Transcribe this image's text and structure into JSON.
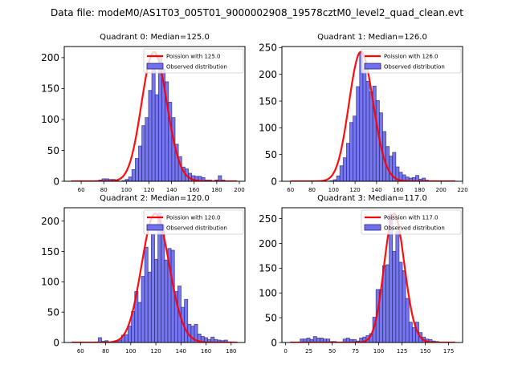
{
  "figure": {
    "suptitle": "Data file: modeM0/AS1T03_005T01_9000002908_19578cztM0_level2_quad_clean.evt"
  },
  "colors": {
    "bar_fill": "#7070f0",
    "bar_edge": "#22226b",
    "poisson_line": "#ff0000"
  },
  "chart_data": [
    {
      "type": "bar",
      "title": "Quadrant 0: Median=125.0",
      "xlabel": "",
      "ylabel": "",
      "xlim": [
        45,
        205
      ],
      "ylim": [
        0,
        218
      ],
      "xticks": [
        60,
        80,
        100,
        120,
        140,
        160,
        180,
        200
      ],
      "yticks": [
        0,
        50,
        100,
        150,
        200
      ],
      "legend_position": "top-right",
      "legend": [
        "Poission with 125.0",
        "Observed distribution"
      ],
      "poisson_mean": 125.0,
      "poisson_scale": 209,
      "poisson_range": [
        51,
        198
      ],
      "bin_start": 52,
      "bin_width": 2.94,
      "values": [
        0,
        0,
        0,
        0,
        0,
        0,
        0,
        1,
        2,
        4,
        4,
        3,
        3,
        1,
        0,
        1,
        3,
        7,
        19,
        37,
        57,
        90,
        103,
        147,
        181,
        140,
        201,
        181,
        161,
        128,
        103,
        60,
        40,
        23,
        20,
        13,
        9,
        8,
        8,
        6,
        2,
        2,
        0,
        2,
        9,
        2,
        0,
        0,
        0,
        0
      ]
    },
    {
      "type": "bar",
      "title": "Quadrant 1: Median=126.0",
      "xlabel": "",
      "ylabel": "",
      "xlim": [
        52,
        220
      ],
      "ylim": [
        0,
        252
      ],
      "xticks": [
        60,
        80,
        100,
        120,
        140,
        160,
        180,
        200,
        220
      ],
      "yticks": [
        0,
        50,
        100,
        150,
        200,
        250
      ],
      "legend_position": "top-right",
      "legend": [
        "Poission with 126.0",
        "Observed distribution"
      ],
      "poisson_mean": 126.0,
      "poisson_scale": 242,
      "poisson_range": [
        60,
        213
      ],
      "bin_start": 60,
      "bin_width": 3.06,
      "values": [
        0,
        0,
        0,
        0,
        0,
        0,
        0,
        0,
        0,
        0,
        0,
        0,
        1,
        3,
        10,
        29,
        44,
        71,
        110,
        122,
        177,
        240,
        210,
        187,
        167,
        178,
        151,
        128,
        93,
        65,
        47,
        54,
        27,
        17,
        12,
        8,
        6,
        7,
        11,
        4,
        6,
        2,
        1,
        1,
        1,
        0,
        0,
        0,
        0,
        1
      ]
    },
    {
      "type": "bar",
      "title": "Quadrant 2: Median=120.0",
      "xlabel": "",
      "ylabel": "",
      "xlim": [
        47,
        191
      ],
      "ylim": [
        0,
        222
      ],
      "xticks": [
        60,
        80,
        100,
        120,
        140,
        160,
        180
      ],
      "yticks": [
        0,
        50,
        100,
        150,
        200
      ],
      "legend_position": "top-right",
      "legend": [
        "Poission with 120.0",
        "Observed distribution"
      ],
      "poisson_mean": 120.0,
      "poisson_scale": 212,
      "poisson_range": [
        53,
        185
      ],
      "bin_start": 53,
      "bin_width": 2.64,
      "values": [
        0,
        0,
        0,
        0,
        0,
        0,
        0,
        1,
        8,
        2,
        3,
        0,
        1,
        3,
        4,
        12,
        13,
        27,
        51,
        84,
        66,
        109,
        157,
        116,
        178,
        137,
        213,
        193,
        136,
        155,
        152,
        84,
        93,
        58,
        71,
        30,
        27,
        30,
        14,
        10,
        8,
        5,
        9,
        5,
        4,
        3,
        4,
        1,
        1,
        0
      ]
    },
    {
      "type": "bar",
      "title": "Quadrant 3: Median=117.0",
      "xlabel": "",
      "ylabel": "",
      "xlim": [
        -4,
        190
      ],
      "ylim": [
        0,
        272
      ],
      "xticks": [
        0,
        25,
        50,
        75,
        100,
        125,
        150,
        175
      ],
      "yticks": [
        0,
        50,
        100,
        150,
        200,
        250
      ],
      "legend_position": "top-right",
      "legend": [
        "Poission with 117.0",
        "Observed distribution"
      ],
      "poisson_mean": 117.0,
      "poisson_scale": 260,
      "poisson_range": [
        5,
        182
      ],
      "bin_start": 5,
      "bin_width": 3.54,
      "values": [
        0,
        0,
        0,
        7,
        7,
        9,
        6,
        12,
        9,
        9,
        7,
        7,
        2,
        2,
        0,
        0,
        7,
        9,
        6,
        6,
        3,
        9,
        11,
        14,
        18,
        51,
        107,
        107,
        155,
        157,
        259,
        184,
        224,
        162,
        145,
        89,
        41,
        30,
        41,
        20,
        11,
        7,
        6,
        3,
        2,
        1,
        0,
        0,
        0,
        0
      ]
    }
  ]
}
